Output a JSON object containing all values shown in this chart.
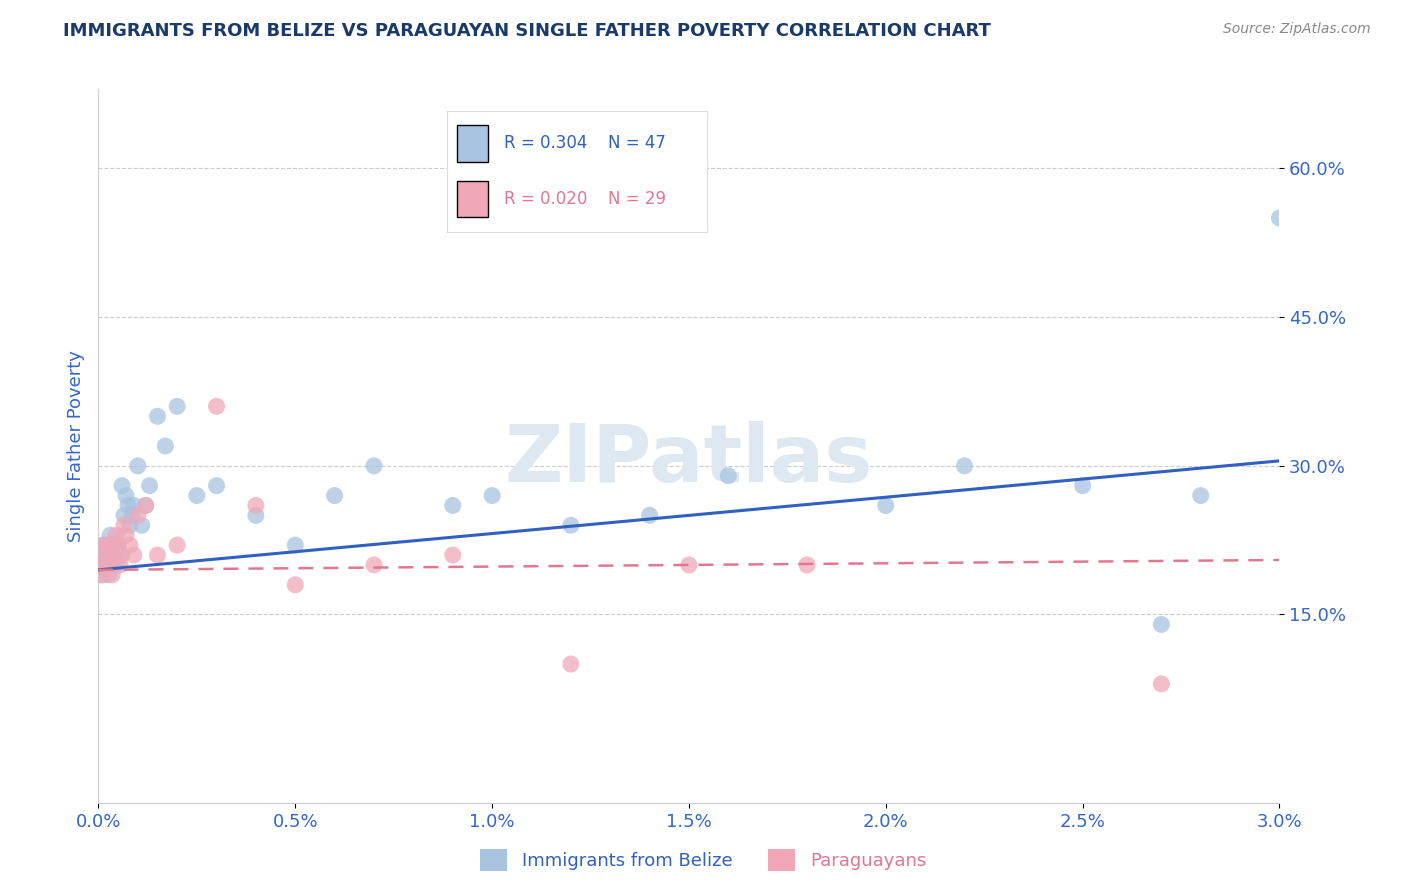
{
  "title": "IMMIGRANTS FROM BELIZE VS PARAGUAYAN SINGLE FATHER POVERTY CORRELATION CHART",
  "source_text": "Source: ZipAtlas.com",
  "ylabel": "Single Father Poverty",
  "watermark": "ZIPatlas",
  "xlim": [
    0.0,
    0.03
  ],
  "ylim": [
    -0.04,
    0.68
  ],
  "yticks": [
    0.15,
    0.3,
    0.45,
    0.6
  ],
  "ytick_labels": [
    "15.0%",
    "30.0%",
    "45.0%",
    "60.0%"
  ],
  "xticks": [
    0.0,
    0.005,
    0.01,
    0.015,
    0.02,
    0.025,
    0.03
  ],
  "xtick_labels": [
    "0.0%",
    "0.5%",
    "1.0%",
    "1.5%",
    "2.0%",
    "2.5%",
    "3.0%"
  ],
  "legend_r1": "R = 0.304",
  "legend_n1": "N = 47",
  "legend_r2": "R = 0.020",
  "legend_n2": "N = 29",
  "series1_color": "#a8c4e0",
  "series2_color": "#f0a8b8",
  "line1_color": "#3060c0",
  "line2_color": "#e07890",
  "title_color": "#1a3a6b",
  "axis_label_color": "#3366cc",
  "tick_color": "#3366cc",
  "grid_color": "#cccccc",
  "background_color": "#ffffff",
  "belize_x": [
    5e-05,
    8e-05,
    0.0001,
    0.00012,
    0.00015,
    0.0002,
    0.00022,
    0.00025,
    0.0003,
    0.00032,
    0.00035,
    0.0004,
    0.00042,
    0.00045,
    0.0005,
    0.00055,
    0.0006,
    0.00065,
    0.0007,
    0.00075,
    0.0008,
    0.00085,
    0.0009,
    0.001,
    0.0011,
    0.0012,
    0.0013,
    0.0015,
    0.0017,
    0.002,
    0.0025,
    0.003,
    0.004,
    0.005,
    0.006,
    0.007,
    0.009,
    0.01,
    0.012,
    0.014,
    0.016,
    0.02,
    0.022,
    0.025,
    0.027,
    0.028,
    0.03
  ],
  "belize_y": [
    0.2,
    0.19,
    0.22,
    0.21,
    0.2,
    0.21,
    0.22,
    0.19,
    0.23,
    0.21,
    0.2,
    0.22,
    0.21,
    0.2,
    0.22,
    0.21,
    0.28,
    0.25,
    0.27,
    0.26,
    0.24,
    0.25,
    0.26,
    0.3,
    0.24,
    0.26,
    0.28,
    0.35,
    0.32,
    0.36,
    0.27,
    0.28,
    0.25,
    0.22,
    0.27,
    0.3,
    0.26,
    0.27,
    0.24,
    0.25,
    0.29,
    0.26,
    0.3,
    0.28,
    0.14,
    0.27,
    0.55
  ],
  "paraguay_x": [
    5e-05,
    0.0001,
    0.00015,
    0.0002,
    0.00025,
    0.0003,
    0.00035,
    0.0004,
    0.00045,
    0.0005,
    0.00055,
    0.0006,
    0.00065,
    0.0007,
    0.0008,
    0.0009,
    0.001,
    0.0012,
    0.0015,
    0.002,
    0.003,
    0.004,
    0.005,
    0.007,
    0.009,
    0.012,
    0.015,
    0.018,
    0.027
  ],
  "paraguay_y": [
    0.2,
    0.19,
    0.22,
    0.21,
    0.2,
    0.22,
    0.19,
    0.21,
    0.23,
    0.22,
    0.2,
    0.21,
    0.24,
    0.23,
    0.22,
    0.21,
    0.25,
    0.26,
    0.21,
    0.22,
    0.36,
    0.26,
    0.18,
    0.2,
    0.21,
    0.1,
    0.2,
    0.2,
    0.08
  ]
}
